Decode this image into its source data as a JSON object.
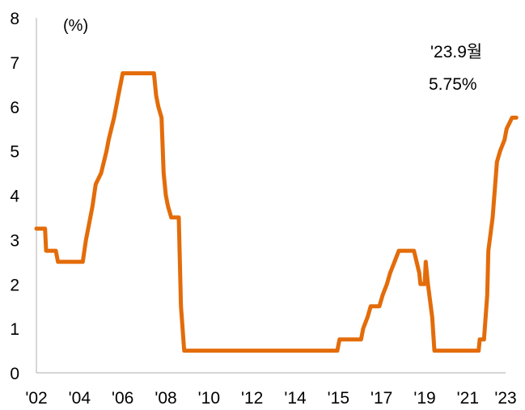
{
  "chart_data": {
    "type": "line",
    "unit_label": "(%)",
    "ylim": [
      0,
      8
    ],
    "yticks": [
      "0",
      "1",
      "2",
      "3",
      "4",
      "5",
      "6",
      "7",
      "8"
    ],
    "xlim": [
      2002,
      2023.75
    ],
    "xticks": [
      {
        "x": 2002,
        "label": "'02"
      },
      {
        "x": 2004,
        "label": "'04"
      },
      {
        "x": 2006,
        "label": "'06"
      },
      {
        "x": 2008,
        "label": "'08"
      },
      {
        "x": 2010,
        "label": "'10"
      },
      {
        "x": 2012,
        "label": "'12"
      },
      {
        "x": 2014,
        "label": "'14"
      },
      {
        "x": 2016,
        "label": "'15"
      },
      {
        "x": 2018,
        "label": "'17"
      },
      {
        "x": 2020,
        "label": "'19"
      },
      {
        "x": 2022,
        "label": "'21"
      },
      {
        "x": 2023.75,
        "label": "'23"
      }
    ],
    "annotation": {
      "line1": "'23.9월",
      "line2": "5.75%"
    },
    "grid": false,
    "series": [
      {
        "color": "#e36c0a",
        "points": [
          [
            2002.0,
            3.25
          ],
          [
            2002.4,
            3.25
          ],
          [
            2002.45,
            2.75
          ],
          [
            2002.9,
            2.75
          ],
          [
            2003.0,
            2.5
          ],
          [
            2004.15,
            2.5
          ],
          [
            2004.3,
            3.0
          ],
          [
            2004.4,
            3.25
          ],
          [
            2004.6,
            3.75
          ],
          [
            2004.75,
            4.25
          ],
          [
            2005.0,
            4.5
          ],
          [
            2005.25,
            5.0
          ],
          [
            2005.35,
            5.25
          ],
          [
            2005.6,
            5.75
          ],
          [
            2005.8,
            6.25
          ],
          [
            2006.0,
            6.75
          ],
          [
            2007.45,
            6.75
          ],
          [
            2007.55,
            6.25
          ],
          [
            2007.65,
            6.0
          ],
          [
            2007.8,
            5.75
          ],
          [
            2007.9,
            4.5
          ],
          [
            2008.0,
            4.0
          ],
          [
            2008.1,
            3.75
          ],
          [
            2008.25,
            3.5
          ],
          [
            2008.6,
            3.5
          ],
          [
            2008.7,
            1.5
          ],
          [
            2008.85,
            0.5
          ],
          [
            2015.95,
            0.5
          ],
          [
            2016.05,
            0.75
          ],
          [
            2017.05,
            0.75
          ],
          [
            2017.15,
            1.0
          ],
          [
            2017.35,
            1.25
          ],
          [
            2017.5,
            1.5
          ],
          [
            2017.9,
            1.5
          ],
          [
            2018.05,
            1.75
          ],
          [
            2018.25,
            2.0
          ],
          [
            2018.4,
            2.25
          ],
          [
            2018.6,
            2.5
          ],
          [
            2018.8,
            2.75
          ],
          [
            2019.5,
            2.75
          ],
          [
            2019.75,
            2.25
          ],
          [
            2019.8,
            2.0
          ],
          [
            2020.0,
            2.0
          ],
          [
            2020.05,
            2.5
          ],
          [
            2020.15,
            2.0
          ],
          [
            2020.35,
            1.25
          ],
          [
            2020.45,
            0.5
          ],
          [
            2022.5,
            0.5
          ],
          [
            2022.55,
            0.75
          ],
          [
            2022.75,
            0.75
          ],
          [
            2022.9,
            1.75
          ],
          [
            2022.95,
            2.75
          ],
          [
            2023.15,
            3.5
          ],
          [
            2023.35,
            4.75
          ],
          [
            2023.5,
            5.0
          ],
          [
            2023.7,
            5.25
          ],
          [
            2023.8,
            5.5
          ],
          [
            2024.05,
            5.75
          ],
          [
            2024.25,
            5.75
          ]
        ]
      }
    ]
  }
}
